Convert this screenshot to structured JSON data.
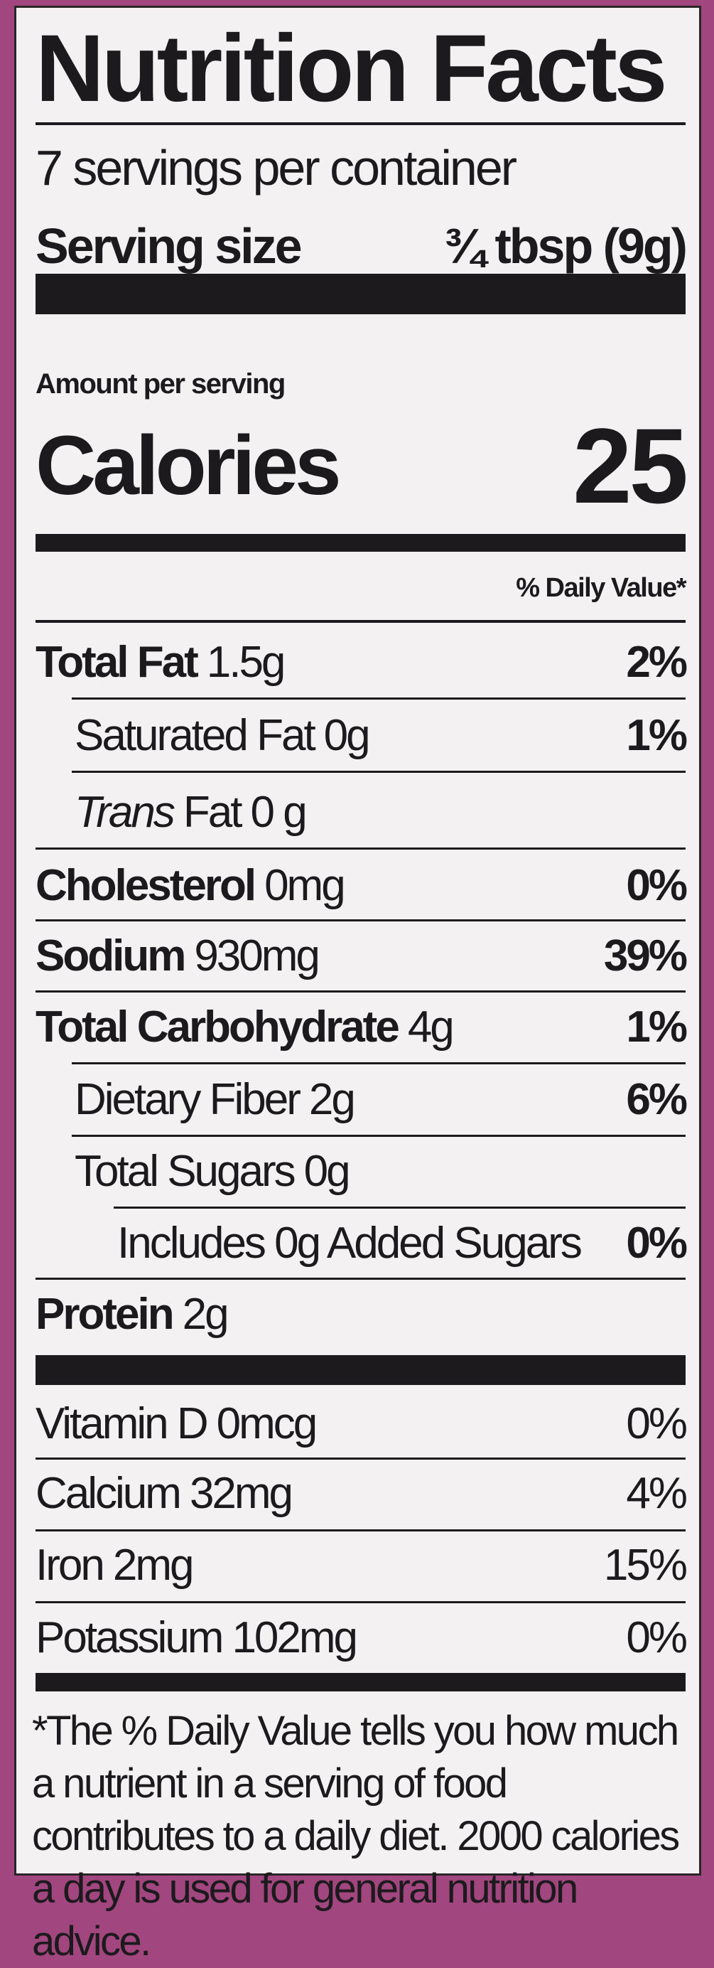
{
  "colors": {
    "background": "#a2467f",
    "panel": "#f3f1f2",
    "ink": "#1c1a1c"
  },
  "title": "Nutrition Facts",
  "servings_per_container": "7 servings per container",
  "serving_size": {
    "label": "Serving size",
    "value": "¾ tbsp (9g)"
  },
  "amount_per_serving": "Amount per serving",
  "calories": {
    "label": "Calories",
    "value": "25"
  },
  "daily_value_header": "% Daily Value*",
  "nutrients": [
    {
      "name": "Total Fat",
      "amount": "1.5g",
      "dv": "2%"
    },
    {
      "name": "Saturated Fat",
      "amount": "0g",
      "dv": "1%"
    },
    {
      "name": "Trans",
      "name_suffix": "Fat",
      "amount": "0 g",
      "dv": ""
    },
    {
      "name": "Cholesterol",
      "amount": "0mg",
      "dv": "0%"
    },
    {
      "name": "Sodium",
      "amount": "930mg",
      "dv": "39%"
    },
    {
      "name": "Total Carbohydrate",
      "amount": "4g",
      "dv": "1%"
    },
    {
      "name": "Dietary Fiber",
      "amount": "2g",
      "dv": "6%"
    },
    {
      "name": "Total Sugars",
      "amount": "0g",
      "dv": ""
    },
    {
      "name": "Includes 0g Added Sugars",
      "amount": "",
      "dv": "0%"
    },
    {
      "name": "Protein",
      "amount": "2g",
      "dv": ""
    }
  ],
  "vitamins": [
    {
      "name": "Vitamin D",
      "amount": "0mcg",
      "dv": "0%"
    },
    {
      "name": "Calcium",
      "amount": "32mg",
      "dv": "4%"
    },
    {
      "name": "Iron",
      "amount": "2mg",
      "dv": "15%"
    },
    {
      "name": "Potassium",
      "amount": "102mg",
      "dv": "0%"
    }
  ],
  "footnote": "*The % Daily Value tells you how much a nutrient in a serving of food contributes to a daily diet. 2000 calories a day is used for general nutrition advice."
}
